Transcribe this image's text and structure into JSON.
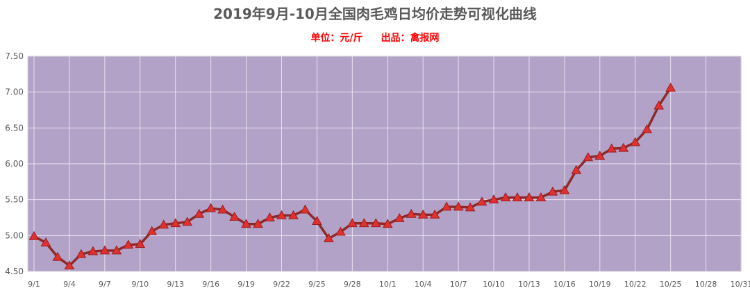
{
  "title": "2019年9月-10月全国肉毛鸡日均价走势可视化曲线",
  "subtitle": {
    "unit": "单位：元/斤",
    "source": "出品：禽报网"
  },
  "colors": {
    "plot_bg": "#b3a2c7",
    "grid": "#e8e0f0",
    "line": "#8b2a2a",
    "marker": "#e03030"
  },
  "chart_data": {
    "type": "line",
    "title": "2019年9月-10月全国肉毛鸡日均价走势可视化曲线",
    "xlabel": "",
    "ylabel": "",
    "ylim": [
      4.5,
      7.5
    ],
    "yticks": [
      "4.50",
      "5.00",
      "5.50",
      "6.00",
      "6.50",
      "7.00",
      "7.50"
    ],
    "grid": true,
    "legend": "none",
    "x_tick_labels": [
      "9/1",
      "9/4",
      "9/7",
      "9/10",
      "9/13",
      "9/16",
      "9/19",
      "9/22",
      "9/25",
      "9/28",
      "10/1",
      "10/4",
      "10/7",
      "10/10",
      "10/13",
      "10/16",
      "10/19",
      "10/22",
      "10/25",
      "10/28",
      "10/31"
    ],
    "x": [
      "9/1",
      "9/2",
      "9/3",
      "9/4",
      "9/5",
      "9/6",
      "9/7",
      "9/8",
      "9/9",
      "9/10",
      "9/11",
      "9/12",
      "9/13",
      "9/14",
      "9/15",
      "9/16",
      "9/17",
      "9/18",
      "9/19",
      "9/20",
      "9/21",
      "9/22",
      "9/23",
      "9/24",
      "9/25",
      "9/26",
      "9/27",
      "9/28",
      "9/29",
      "9/30",
      "10/1",
      "10/2",
      "10/3",
      "10/4",
      "10/5",
      "10/6",
      "10/7",
      "10/8",
      "10/9",
      "10/10",
      "10/11",
      "10/12",
      "10/13",
      "10/14",
      "10/15",
      "10/16",
      "10/17",
      "10/18",
      "10/19",
      "10/20",
      "10/21",
      "10/22",
      "10/23",
      "10/24",
      "10/25"
    ],
    "series": [
      {
        "values": [
          4.99,
          4.9,
          4.7,
          4.58,
          4.74,
          4.78,
          4.79,
          4.79,
          4.87,
          4.88,
          5.06,
          5.15,
          5.17,
          5.19,
          5.3,
          5.38,
          5.36,
          5.26,
          5.16,
          5.16,
          5.25,
          5.28,
          5.28,
          5.36,
          5.2,
          4.96,
          5.05,
          5.17,
          5.17,
          5.17,
          5.16,
          5.24,
          5.3,
          5.29,
          5.29,
          5.4,
          5.4,
          5.39,
          5.47,
          5.5,
          5.53,
          5.53,
          5.53,
          5.53,
          5.61,
          5.63,
          5.91,
          6.09,
          6.11,
          6.21,
          6.22,
          6.3,
          6.48,
          6.81,
          7.06
        ]
      }
    ]
  }
}
